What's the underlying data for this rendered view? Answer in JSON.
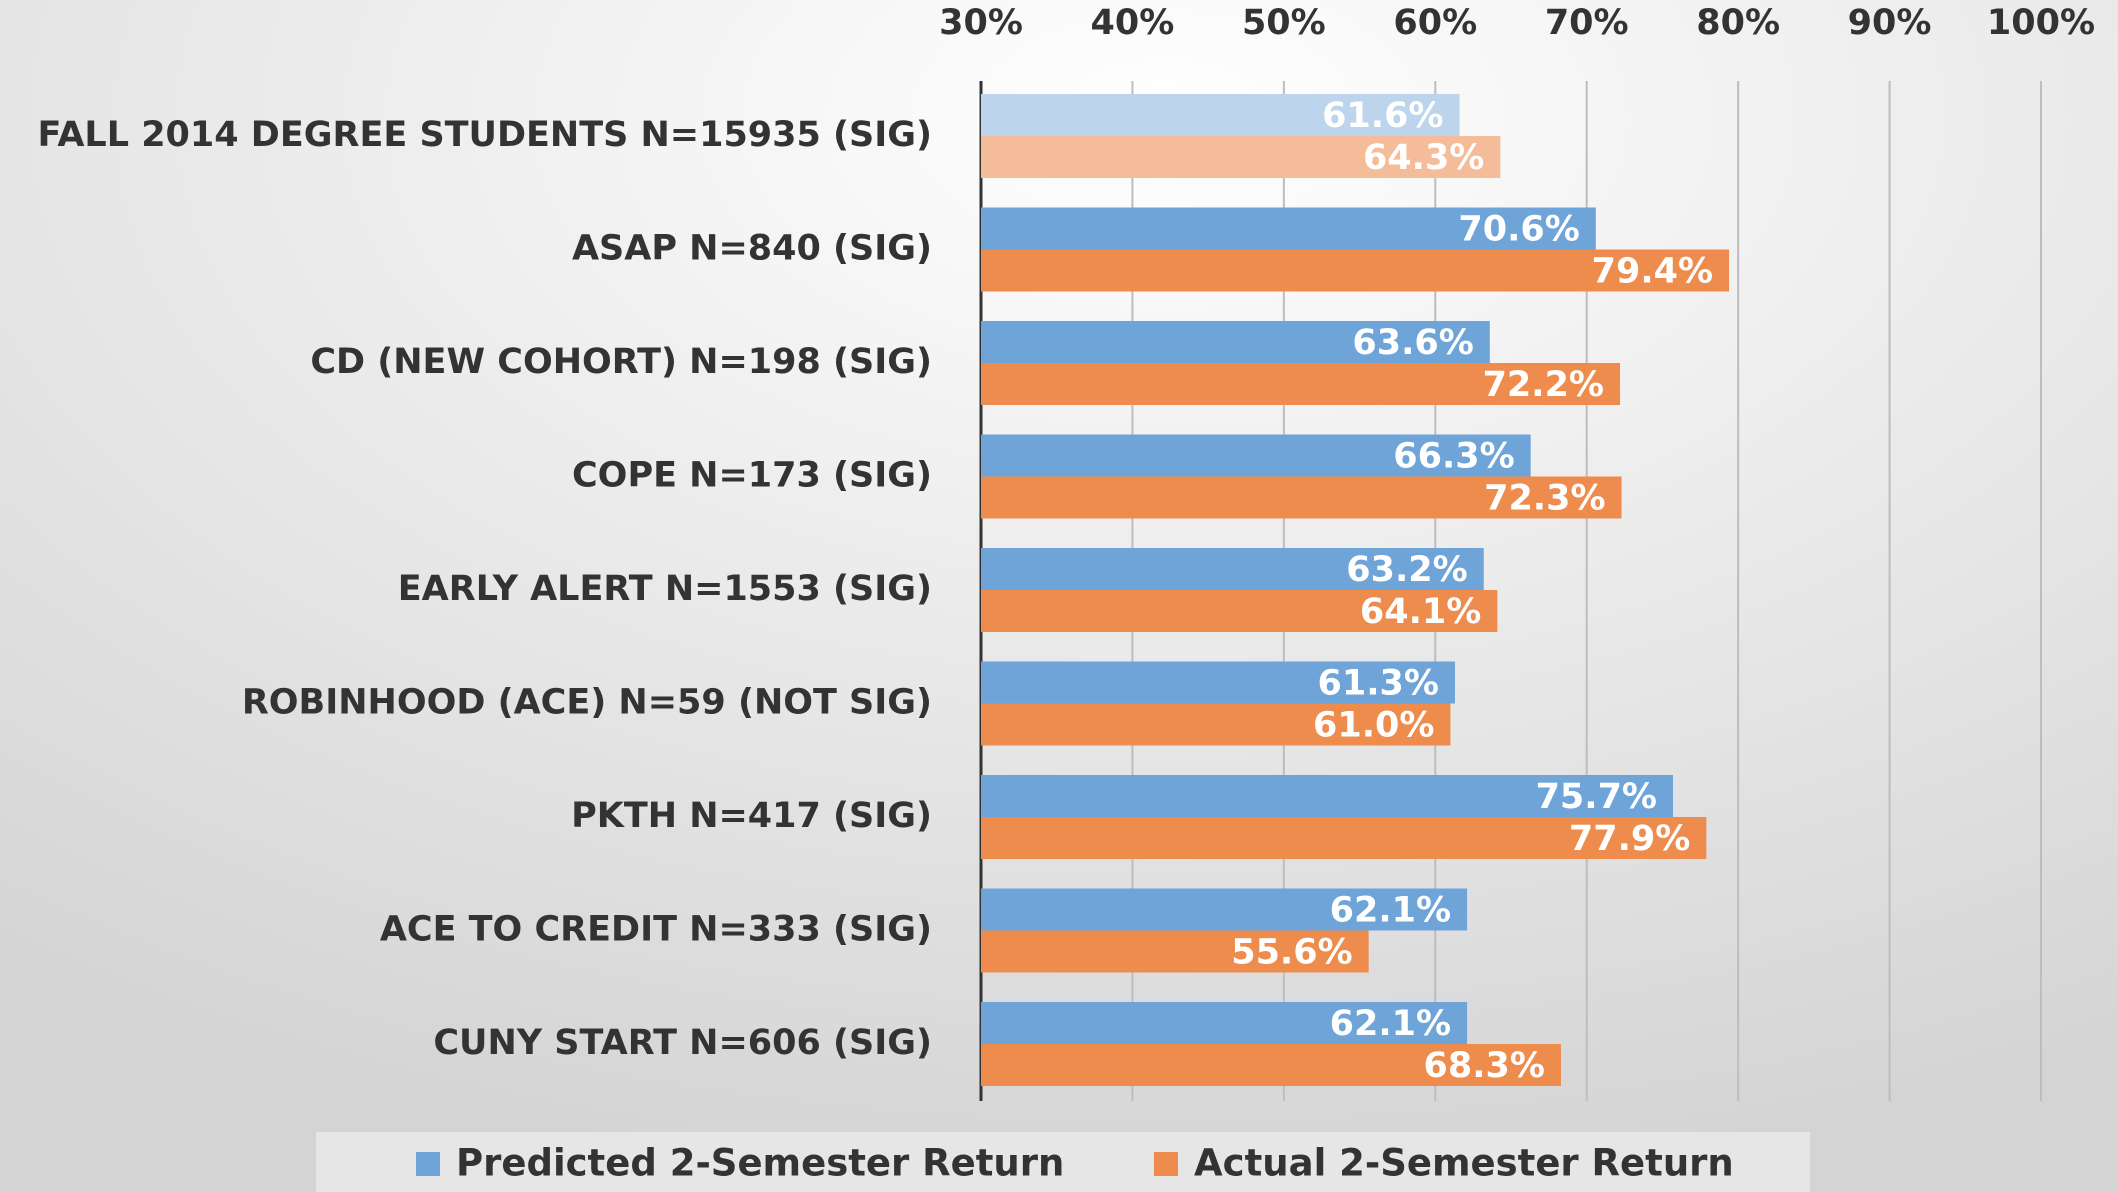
{
  "chart_data": {
    "type": "hbar",
    "categories": [
      "FALL 2014 DEGREE STUDENTS N=15935 (SIG)",
      "ASAP N=840 (SIG)",
      "CD (NEW COHORT) N=198 (SIG)",
      "COPE N=173 (SIG)",
      "EARLY ALERT N=1553 (SIG)",
      "ROBINHOOD (ACE) N=59 (NOT SIG)",
      "PKTH N=417 (SIG)",
      "ACE TO CREDIT N=333 (SIG)",
      "CUNY START N=606 (SIG)"
    ],
    "series": [
      {
        "name": "Predicted 2-Semester Return",
        "color": "#6fa4d8",
        "colors": [
          "#bcd5ec",
          "#6fa4d8",
          "#6fa4d8",
          "#6fa4d8",
          "#6fa4d8",
          "#6fa4d8",
          "#6fa4d8",
          "#6fa4d8",
          "#6fa4d8"
        ],
        "values": [
          61.6,
          70.6,
          63.6,
          66.3,
          63.2,
          61.3,
          75.7,
          62.1,
          62.1
        ],
        "value_labels": [
          "61.6%",
          "70.6%",
          "63.6%",
          "66.3%",
          "63.2%",
          "61.3%",
          "75.7%",
          "62.1%",
          "62.1%"
        ]
      },
      {
        "name": "Actual 2-Semester Return",
        "color": "#ee8c4d",
        "colors": [
          "#f4bc98",
          "#ee8c4d",
          "#ee8c4d",
          "#ee8c4d",
          "#ee8c4d",
          "#ee8c4d",
          "#ee8c4d",
          "#ee8c4d",
          "#ee8c4d"
        ],
        "values": [
          64.3,
          79.4,
          72.2,
          72.3,
          64.1,
          61.0,
          77.9,
          55.6,
          68.3
        ],
        "value_labels": [
          "64.3%",
          "79.4%",
          "72.2%",
          "72.3%",
          "64.1%",
          "61.0%",
          "77.9%",
          "55.6%",
          "68.3%"
        ]
      }
    ],
    "xlim": [
      30,
      100
    ],
    "xticks": [
      {
        "value": 30,
        "label": "30%"
      },
      {
        "value": 40,
        "label": "40%"
      },
      {
        "value": 50,
        "label": "50%"
      },
      {
        "value": 60,
        "label": "60%"
      },
      {
        "value": 70,
        "label": "70%"
      },
      {
        "value": 80,
        "label": "80%"
      },
      {
        "value": 90,
        "label": "90%"
      },
      {
        "value": 100,
        "label": "100%"
      }
    ],
    "grid": true,
    "legend": "bottom"
  }
}
